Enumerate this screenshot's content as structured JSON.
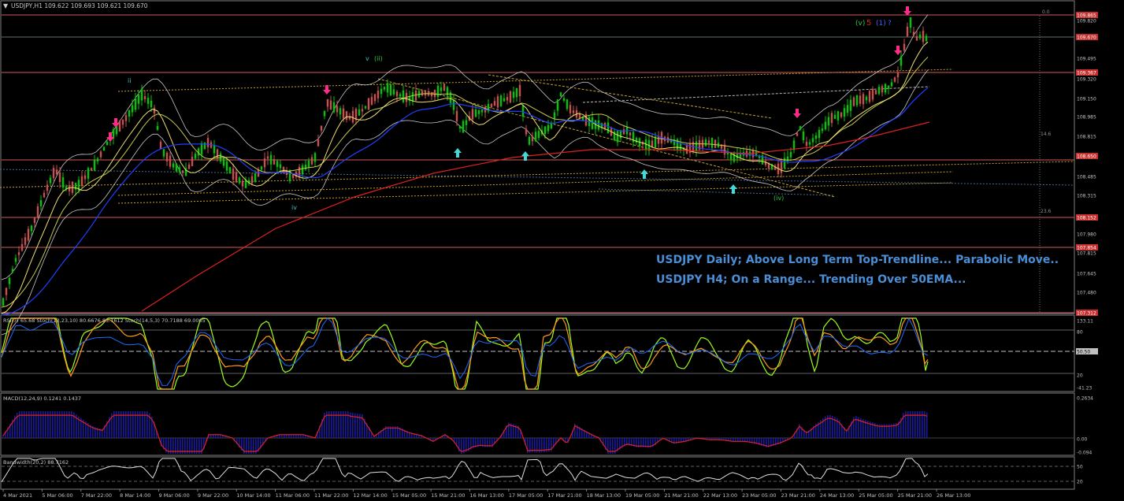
{
  "header": {
    "symbol_label": "USDJPY,H1  109.622 109.693 109.621 109.670"
  },
  "annotations": {
    "daily": "USDJPY Daily; Above Long Term Top-Trendline... Parabolic Move..",
    "h4": "USDJPY H4; On a Range... Trending Over 50EMA..."
  },
  "wave_labels": {
    "ii": "ii",
    "iv": "iv",
    "v": "v",
    "wave_ii": "(ii)",
    "wave_iv": "(iv)",
    "wave_v": "(v)",
    "five": "5",
    "one": "(1)",
    "q": "?"
  },
  "fib_labels": {
    "f00": "0.0",
    "f146": "14.6",
    "f236": "23.6"
  },
  "price_axis": {
    "labels": [
      "109.865",
      "109.820",
      "109.670",
      "109.495",
      "109.367",
      "109.320",
      "109.150",
      "108.985",
      "108.815",
      "108.650",
      "108.485",
      "108.315",
      "108.152",
      "107.980",
      "107.854",
      "107.815",
      "107.645",
      "107.480",
      "107.312"
    ],
    "highlighted": [
      "109.865",
      "109.670",
      "109.367",
      "108.650",
      "108.152",
      "107.854",
      "107.312"
    ]
  },
  "stoch_panel": {
    "label": "RSI(7) 65.68  Stoch(13,23,10) 80.6676 85.1612  Stoch(14,5,3) 70.7188 69.0065",
    "axis": [
      "133.11",
      "80",
      "50.50",
      "20",
      "-41.23"
    ]
  },
  "macd_panel": {
    "label": "MACD(12,24,9) 0.1241 0.1437",
    "axis": [
      "0.2634",
      "0.00",
      "-0.094"
    ]
  },
  "bandwidth_panel": {
    "label": "Bandwidth(20,2) 88.7162",
    "axis": [
      "50",
      "20"
    ]
  },
  "time_axis": [
    "4 Mar 2021",
    "5 Mar 06:00",
    "7 Mar 22:00",
    "8 Mar 14:00",
    "9 Mar 06:00",
    "9 Mar 22:00",
    "10 Mar 14:00",
    "11 Mar 06:00",
    "11 Mar 22:00",
    "12 Mar 14:00",
    "15 Mar 05:00",
    "15 Mar 21:00",
    "16 Mar 13:00",
    "17 Mar 05:00",
    "17 Mar 21:00",
    "18 Mar 13:00",
    "19 Mar 05:00",
    "21 Mar 21:00",
    "22 Mar 13:00",
    "23 Mar 05:00",
    "23 Mar 21:00",
    "24 Mar 13:00",
    "25 Mar 05:00",
    "25 Mar 21:00",
    "26 Mar 13:00"
  ],
  "colors": {
    "background": "#000000",
    "bull": "#00c800",
    "bear": "#c85050",
    "hline": "#d05a5a",
    "ema50": "#2040ff",
    "sma200": "#e02020",
    "bb": "#c8c8c8",
    "annotation": "#4a8ed6",
    "arrow_down": "#ff2a8a",
    "arrow_up": "#40d8d8",
    "stoch_fast": "#9cff1a",
    "stoch_slow": "#ff9a1a",
    "rsi": "#1e6cff",
    "macd_hist": "#1a1a9a",
    "macd_signal": "#e02020"
  }
}
